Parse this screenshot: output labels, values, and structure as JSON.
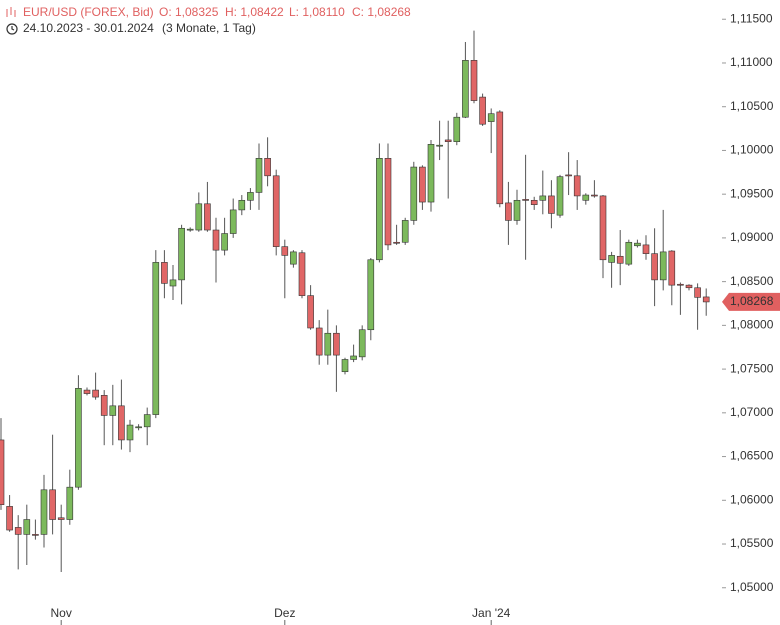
{
  "chart_data": {
    "type": "candlestick",
    "title": "EUR/USD (FOREX, Bid)",
    "ohlc_labels": [
      "O: 1,08325",
      "H: 1,08422",
      "L: 1,08110",
      "C: 1,08268"
    ],
    "date_range": "24.10.2023 - 30.01.2024",
    "period": "(3 Monate, 1 Tag)",
    "categories": [
      null,
      null,
      null,
      null,
      null,
      null,
      null,
      "Nov",
      null,
      null,
      null,
      null,
      null,
      null,
      null,
      null,
      null,
      null,
      null,
      null,
      null,
      null,
      null,
      null,
      null,
      null,
      null,
      null,
      null,
      null,
      null,
      null,
      null,
      "Dez",
      null,
      null,
      null,
      null,
      null,
      null,
      null,
      null,
      null,
      null,
      null,
      null,
      null,
      null,
      null,
      null,
      null,
      null,
      null,
      null,
      null,
      null,
      null,
      "Jan '24",
      null,
      null,
      null,
      null,
      null,
      null,
      null,
      null,
      null,
      null,
      null,
      null,
      null,
      null,
      null,
      null,
      null,
      null,
      null,
      null,
      null,
      null,
      null,
      null,
      null
    ],
    "open": [
      1.0669,
      1.0593,
      1.0569,
      1.0561,
      1.0561,
      1.0561,
      1.0612,
      1.058,
      1.0578,
      1.0615,
      1.0726,
      1.0726,
      1.072,
      1.0697,
      1.0708,
      1.0669,
      1.0683,
      1.0684,
      1.0698,
      1.0872,
      1.0845,
      1.0852,
      1.0909,
      1.0909,
      1.0939,
      1.0909,
      1.0886,
      1.0905,
      1.0932,
      1.0943,
      1.0952,
      1.0991,
      1.0971,
      1.089,
      1.087,
      1.0883,
      1.0834,
      1.0797,
      1.0766,
      1.0791,
      1.0747,
      1.0761,
      1.0764,
      1.0795,
      1.0875,
      1.0991,
      1.0895,
      1.0895,
      1.092,
      1.0981,
      1.0941,
      1.1005,
      1.1012,
      1.101,
      1.1038,
      1.1103,
      1.1061,
      1.1033,
      1.1044,
      1.094,
      1.092,
      1.0944,
      1.0943,
      1.0943,
      1.0948,
      1.0926,
      1.0972,
      1.0971,
      1.0943,
      1.0949,
      1.0948,
      1.0872,
      1.0879,
      1.087,
      1.0891,
      1.0892,
      1.0882,
      1.0852,
      1.0885,
      1.0847,
      1.0846,
      1.0843,
      1.08325
    ],
    "high": [
      1.0694,
      1.0606,
      1.0583,
      1.0595,
      1.0578,
      1.0629,
      1.0675,
      1.0595,
      1.0635,
      1.0743,
      1.0729,
      1.0746,
      1.0726,
      1.0732,
      1.0738,
      1.0692,
      1.0687,
      1.0706,
      1.0886,
      1.0886,
      1.0869,
      1.0915,
      1.0912,
      1.0952,
      1.0964,
      1.0923,
      1.0923,
      1.0945,
      1.0949,
      1.0957,
      1.1008,
      1.1015,
      1.0978,
      1.0898,
      1.0886,
      1.0886,
      1.0846,
      1.0806,
      1.0818,
      1.08,
      1.0763,
      1.0778,
      1.08,
      1.0877,
      1.1008,
      1.1008,
      1.0915,
      1.0923,
      1.0987,
      1.0983,
      1.1012,
      1.1034,
      1.1034,
      1.1043,
      1.1124,
      1.1137,
      1.1065,
      1.1048,
      1.1046,
      1.0964,
      1.0955,
      1.0995,
      1.0947,
      1.0977,
      1.0966,
      1.0972,
      1.0998,
      1.0989,
      1.0951,
      1.0966,
      1.0949,
      1.0884,
      1.0909,
      1.0898,
      1.0898,
      1.0903,
      1.0911,
      1.0932,
      1.0886,
      1.0849,
      1.0847,
      1.0848,
      1.08422
    ],
    "low": [
      1.0589,
      1.0564,
      1.0521,
      1.0526,
      1.0555,
      1.0546,
      1.0561,
      1.0518,
      1.0572,
      1.0612,
      1.072,
      1.0715,
      1.0663,
      1.0663,
      1.0658,
      1.0655,
      1.068,
      1.0663,
      1.0694,
      1.0831,
      1.0829,
      1.0824,
      1.0907,
      1.0907,
      1.0907,
      1.0849,
      1.088,
      1.09,
      1.0926,
      1.0932,
      1.0932,
      1.0959,
      1.088,
      1.0831,
      1.0866,
      1.0831,
      1.0795,
      1.0755,
      1.0755,
      1.0724,
      1.0744,
      1.0758,
      1.076,
      1.0783,
      1.0872,
      1.0886,
      1.0892,
      1.0892,
      1.0915,
      1.0932,
      1.093,
      1.0989,
      1.0945,
      1.1006,
      1.1037,
      1.1054,
      1.1028,
      1.0997,
      1.0935,
      1.0892,
      1.0915,
      1.0875,
      1.0932,
      1.0927,
      1.0911,
      1.0923,
      1.0949,
      1.0932,
      1.0938,
      1.0946,
      1.0854,
      1.0843,
      1.0846,
      1.0868,
      1.0889,
      1.0875,
      1.0822,
      1.084,
      1.0823,
      1.0812,
      1.084,
      1.0795,
      1.0811
    ],
    "close": [
      1.0595,
      1.0566,
      1.0561,
      1.0578,
      1.056,
      1.0612,
      1.0578,
      1.0578,
      1.0615,
      1.0728,
      1.0722,
      1.0718,
      1.0697,
      1.0708,
      1.0669,
      1.0686,
      1.0684,
      1.0698,
      1.0872,
      1.0848,
      1.0852,
      1.0911,
      1.091,
      1.0939,
      1.0909,
      1.0886,
      1.0905,
      1.0932,
      1.0943,
      1.0952,
      1.0991,
      1.0971,
      1.089,
      1.088,
      1.0884,
      1.0834,
      1.0797,
      1.0766,
      1.0791,
      1.0766,
      1.0761,
      1.0765,
      1.0795,
      1.0875,
      1.0991,
      1.0892,
      1.0894,
      1.092,
      1.0981,
      1.0941,
      1.1007,
      1.1006,
      1.101,
      1.1038,
      1.1103,
      1.1057,
      1.103,
      1.1042,
      1.0939,
      1.092,
      1.0943,
      1.0943,
      1.0938,
      1.0948,
      1.0928,
      1.097,
      1.0971,
      1.0948,
      1.0949,
      1.0948,
      1.0875,
      1.088,
      1.0871,
      1.0895,
      1.0894,
      1.0882,
      1.0852,
      1.0884,
      1.0846,
      1.0846,
      1.0843,
      1.0832,
      1.08268
    ],
    "up_color": "#7cb95c",
    "down_color": "#e06666",
    "ylim": [
      1.0486,
      1.1172
    ],
    "yticks": [
      {
        "value": 1.05,
        "label": "1,05000"
      },
      {
        "value": 1.055,
        "label": "1,05500"
      },
      {
        "value": 1.06,
        "label": "1,06000"
      },
      {
        "value": 1.065,
        "label": "1,06500"
      },
      {
        "value": 1.07,
        "label": "1,07000"
      },
      {
        "value": 1.075,
        "label": "1,07500"
      },
      {
        "value": 1.08,
        "label": "1,08000"
      },
      {
        "value": 1.085,
        "label": "1,08500"
      },
      {
        "value": 1.09,
        "label": "1,09000"
      },
      {
        "value": 1.095,
        "label": "1,09500"
      },
      {
        "value": 1.1,
        "label": "1,10000"
      },
      {
        "value": 1.105,
        "label": "1,10500"
      },
      {
        "value": 1.11,
        "label": "1,11000"
      },
      {
        "value": 1.115,
        "label": "1,11500"
      }
    ],
    "last_label": {
      "value": 1.08268,
      "label": "1,08268"
    }
  }
}
